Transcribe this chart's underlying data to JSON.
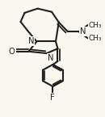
{
  "bg": "#faf8ee",
  "bc": "#1e1e1e",
  "bw": 1.5,
  "fs": 7.2,
  "figsize": [
    1.3,
    1.45
  ],
  "dpi": 100,
  "xlim": [
    0.0,
    1.0
  ],
  "ylim": [
    -0.18,
    1.05
  ]
}
